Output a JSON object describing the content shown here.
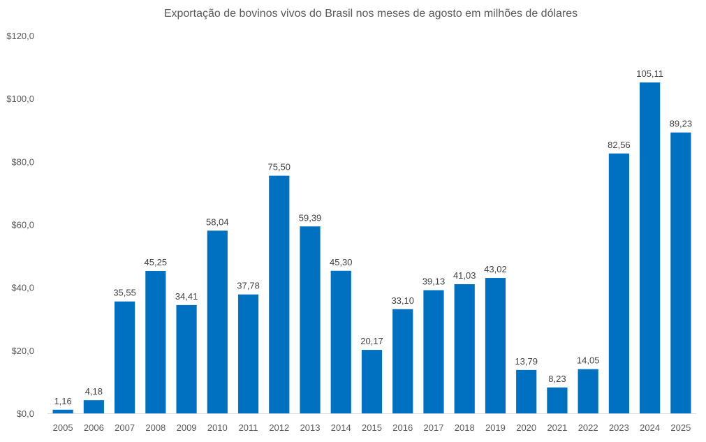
{
  "chart_data": {
    "type": "bar",
    "title": "Exportação de bovinos vivos do Brasil nos meses de agosto em milhões de dólares",
    "xlabel": "",
    "ylabel": "",
    "ylim": [
      0,
      120
    ],
    "grid": false,
    "legend": "none",
    "bar_color": "#0070C0",
    "yticks": [
      0,
      20,
      40,
      60,
      80,
      100,
      120
    ],
    "ytick_labels": [
      "$0,0",
      "$20,0",
      "$40,0",
      "$60,0",
      "$80,0",
      "$100,0",
      "$120,0"
    ],
    "categories": [
      "2005",
      "2006",
      "2007",
      "2008",
      "2009",
      "2010",
      "2011",
      "2012",
      "2013",
      "2014",
      "2015",
      "2016",
      "2017",
      "2018",
      "2019",
      "2020",
      "2021",
      "2022",
      "2023",
      "2024",
      "2025"
    ],
    "values": [
      1.16,
      4.18,
      35.55,
      45.25,
      34.41,
      58.04,
      37.78,
      75.5,
      59.39,
      45.3,
      20.17,
      33.1,
      39.13,
      41.03,
      43.02,
      13.79,
      8.23,
      14.05,
      82.56,
      105.11,
      89.23
    ],
    "data_labels": [
      "1,16",
      "4,18",
      "35,55",
      "45,25",
      "34,41",
      "58,04",
      "37,78",
      "75,50",
      "59,39",
      "45,30",
      "20,17",
      "33,10",
      "39,13",
      "41,03",
      "43,02",
      "13,79",
      "8,23",
      "14,05",
      "82,56",
      "105,11",
      "89,23"
    ]
  }
}
